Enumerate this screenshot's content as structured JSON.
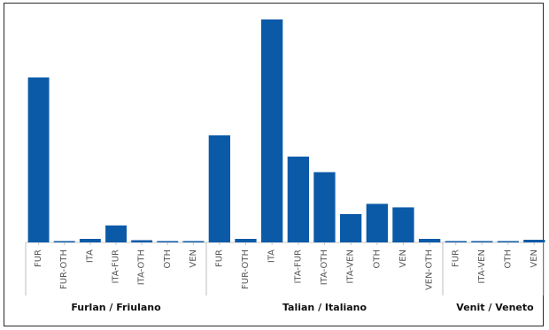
{
  "chart_data": {
    "type": "bar",
    "title": "",
    "xlabel": "",
    "ylabel": "",
    "ylim": [
      0,
      100
    ],
    "grid": false,
    "bar_color": "#0a5aa8",
    "groups": [
      {
        "label": "Furlan / Friulano",
        "categories": [
          "FUR",
          "FUR-OTH",
          "ITA",
          "ITA-FUR",
          "ITA-OTH",
          "OTH",
          "VEN"
        ],
        "values": [
          74,
          0.6,
          1.6,
          7.6,
          1.0,
          0.4,
          0.4
        ]
      },
      {
        "label": "Talian / Italiano",
        "categories": [
          "FUR",
          "FUR-OTH",
          "ITA",
          "ITA-FUR",
          "ITA-OTH",
          "ITA-VEN",
          "OTH",
          "VEN",
          "VEN-OTH"
        ],
        "values": [
          48,
          1.6,
          100,
          38.5,
          31.5,
          12.7,
          17.3,
          15.7,
          1.6
        ]
      },
      {
        "label": "Venit / Veneto",
        "categories": [
          "FUR",
          "ITA-VEN",
          "OTH",
          "VEN"
        ],
        "values": [
          0.3,
          0.3,
          0.3,
          1.2
        ]
      }
    ]
  }
}
